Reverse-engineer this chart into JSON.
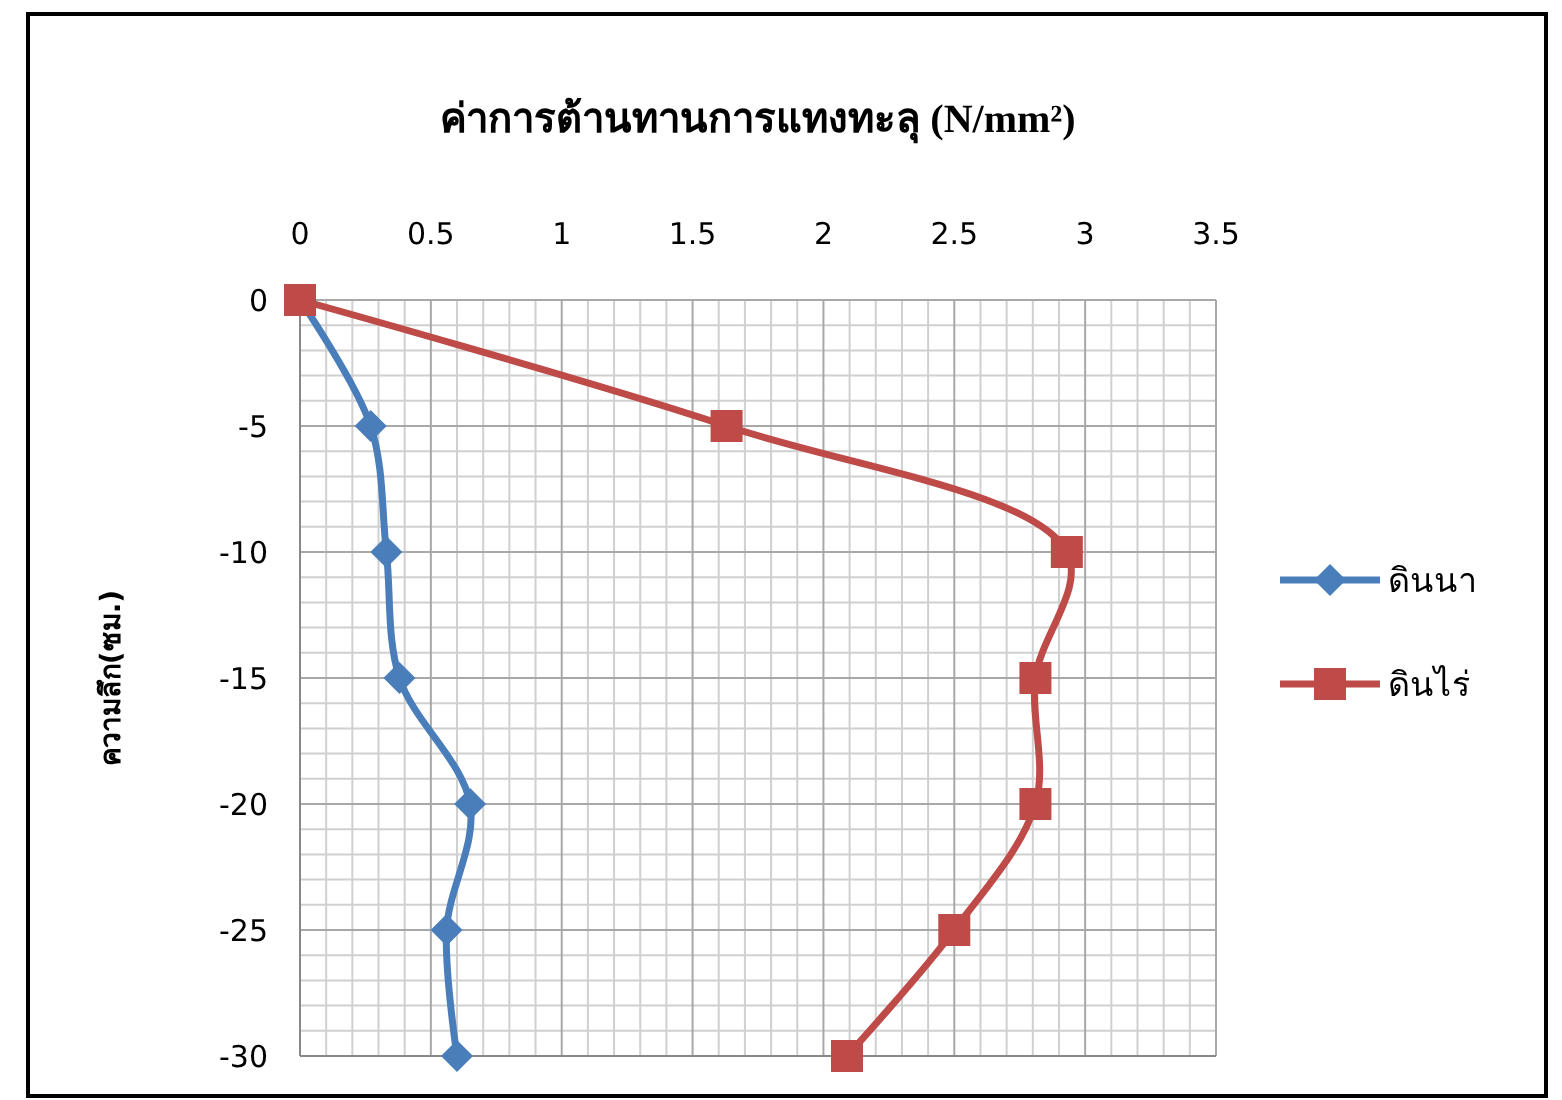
{
  "chart_data": {
    "type": "line",
    "title": "ค่าการต้านทานการแทงทะลุ (N/mm²)",
    "ylabel": "ความลึก(ซม.)",
    "series": [
      {
        "name": "ดินนา",
        "color": "#4a7ebb",
        "marker": "diamond",
        "x": [
          0,
          0.27,
          0.33,
          0.38,
          0.65,
          0.56,
          0.6
        ],
        "values": [
          0,
          -5,
          -10,
          -15,
          -20,
          -25,
          -30
        ]
      },
      {
        "name": "ดินไร่",
        "color": "#be4b48",
        "marker": "square",
        "x": [
          0,
          1.63,
          2.93,
          2.81,
          2.81,
          2.5,
          2.09
        ],
        "values": [
          0,
          -5,
          -10,
          -15,
          -20,
          -25,
          -30
        ]
      }
    ],
    "xlim": [
      0,
      3.5
    ],
    "xticks": [
      0,
      0.5,
      1,
      1.5,
      2,
      2.5,
      3,
      3.5
    ],
    "ylim": [
      -30,
      0
    ],
    "yticks": [
      0,
      -5,
      -10,
      -15,
      -20,
      -25,
      -30
    ],
    "grid": true,
    "legend": "right"
  }
}
